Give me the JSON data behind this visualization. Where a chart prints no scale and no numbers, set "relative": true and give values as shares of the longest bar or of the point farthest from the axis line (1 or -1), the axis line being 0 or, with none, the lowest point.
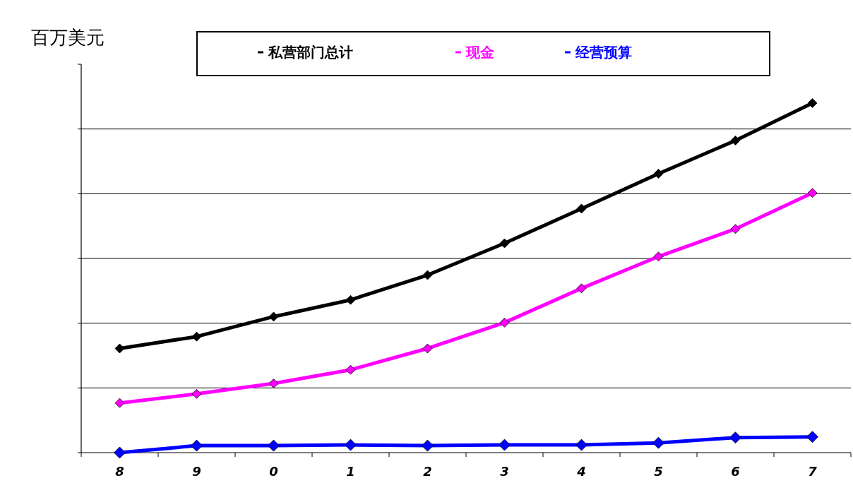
{
  "chart_data": {
    "type": "line",
    "relative": true,
    "ylabel": "百万美元",
    "categories": [
      "8",
      "9",
      "0",
      "1",
      "2",
      "3",
      "4",
      "5",
      "6",
      "7"
    ],
    "series": [
      {
        "name": "私营部门总计",
        "color": "#000000",
        "values": [
          0.298,
          0.332,
          0.389,
          0.437,
          0.508,
          0.599,
          0.698,
          0.798,
          0.893,
          1
        ]
      },
      {
        "name": "现金",
        "color": "#ff00ff",
        "values": [
          0.142,
          0.168,
          0.198,
          0.237,
          0.298,
          0.372,
          0.47,
          0.561,
          0.64,
          0.743
        ]
      },
      {
        "name": "经营预算",
        "color": "#0000ff",
        "values": [
          0,
          0.02,
          0.02,
          0.022,
          0.02,
          0.022,
          0.022,
          0.028,
          0.043,
          0.045
        ]
      }
    ],
    "marker": "diamond",
    "line_style": "solid",
    "grid": "y",
    "legend": "top"
  }
}
